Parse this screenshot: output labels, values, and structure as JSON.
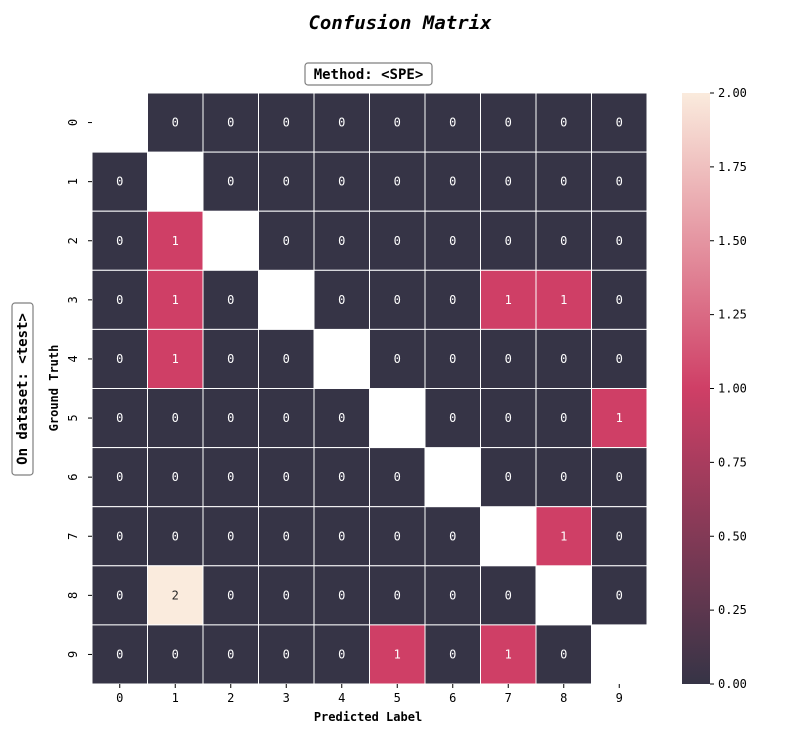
{
  "chart_data": {
    "type": "heatmap",
    "title": "Confusion Matrix",
    "subtitle": "Method: <SPE>",
    "side_label": "On dataset: <test>",
    "xlabel": "Predicted Label",
    "ylabel": "Ground Truth",
    "x_categories": [
      "0",
      "1",
      "2",
      "3",
      "4",
      "5",
      "6",
      "7",
      "8",
      "9"
    ],
    "y_categories": [
      "0",
      "1",
      "2",
      "3",
      "4",
      "5",
      "6",
      "7",
      "8",
      "9"
    ],
    "matrix": [
      [
        null,
        0,
        0,
        0,
        0,
        0,
        0,
        0,
        0,
        0
      ],
      [
        0,
        null,
        0,
        0,
        0,
        0,
        0,
        0,
        0,
        0
      ],
      [
        0,
        1,
        null,
        0,
        0,
        0,
        0,
        0,
        0,
        0
      ],
      [
        0,
        1,
        0,
        null,
        0,
        0,
        0,
        1,
        1,
        0
      ],
      [
        0,
        1,
        0,
        0,
        null,
        0,
        0,
        0,
        0,
        0
      ],
      [
        0,
        0,
        0,
        0,
        0,
        null,
        0,
        0,
        0,
        1
      ],
      [
        0,
        0,
        0,
        0,
        0,
        0,
        null,
        0,
        0,
        0
      ],
      [
        0,
        0,
        0,
        0,
        0,
        0,
        0,
        null,
        1,
        0
      ],
      [
        0,
        2,
        0,
        0,
        0,
        0,
        0,
        0,
        null,
        0
      ],
      [
        0,
        0,
        0,
        0,
        0,
        1,
        0,
        1,
        0,
        null
      ]
    ],
    "colorbar": {
      "min": 0.0,
      "max": 2.0,
      "ticks": [
        "0.00",
        "0.25",
        "0.50",
        "0.75",
        "1.00",
        "1.25",
        "1.50",
        "1.75",
        "2.00"
      ],
      "colors": [
        "#363446",
        "#cf3f66",
        "#faebdd"
      ]
    }
  }
}
